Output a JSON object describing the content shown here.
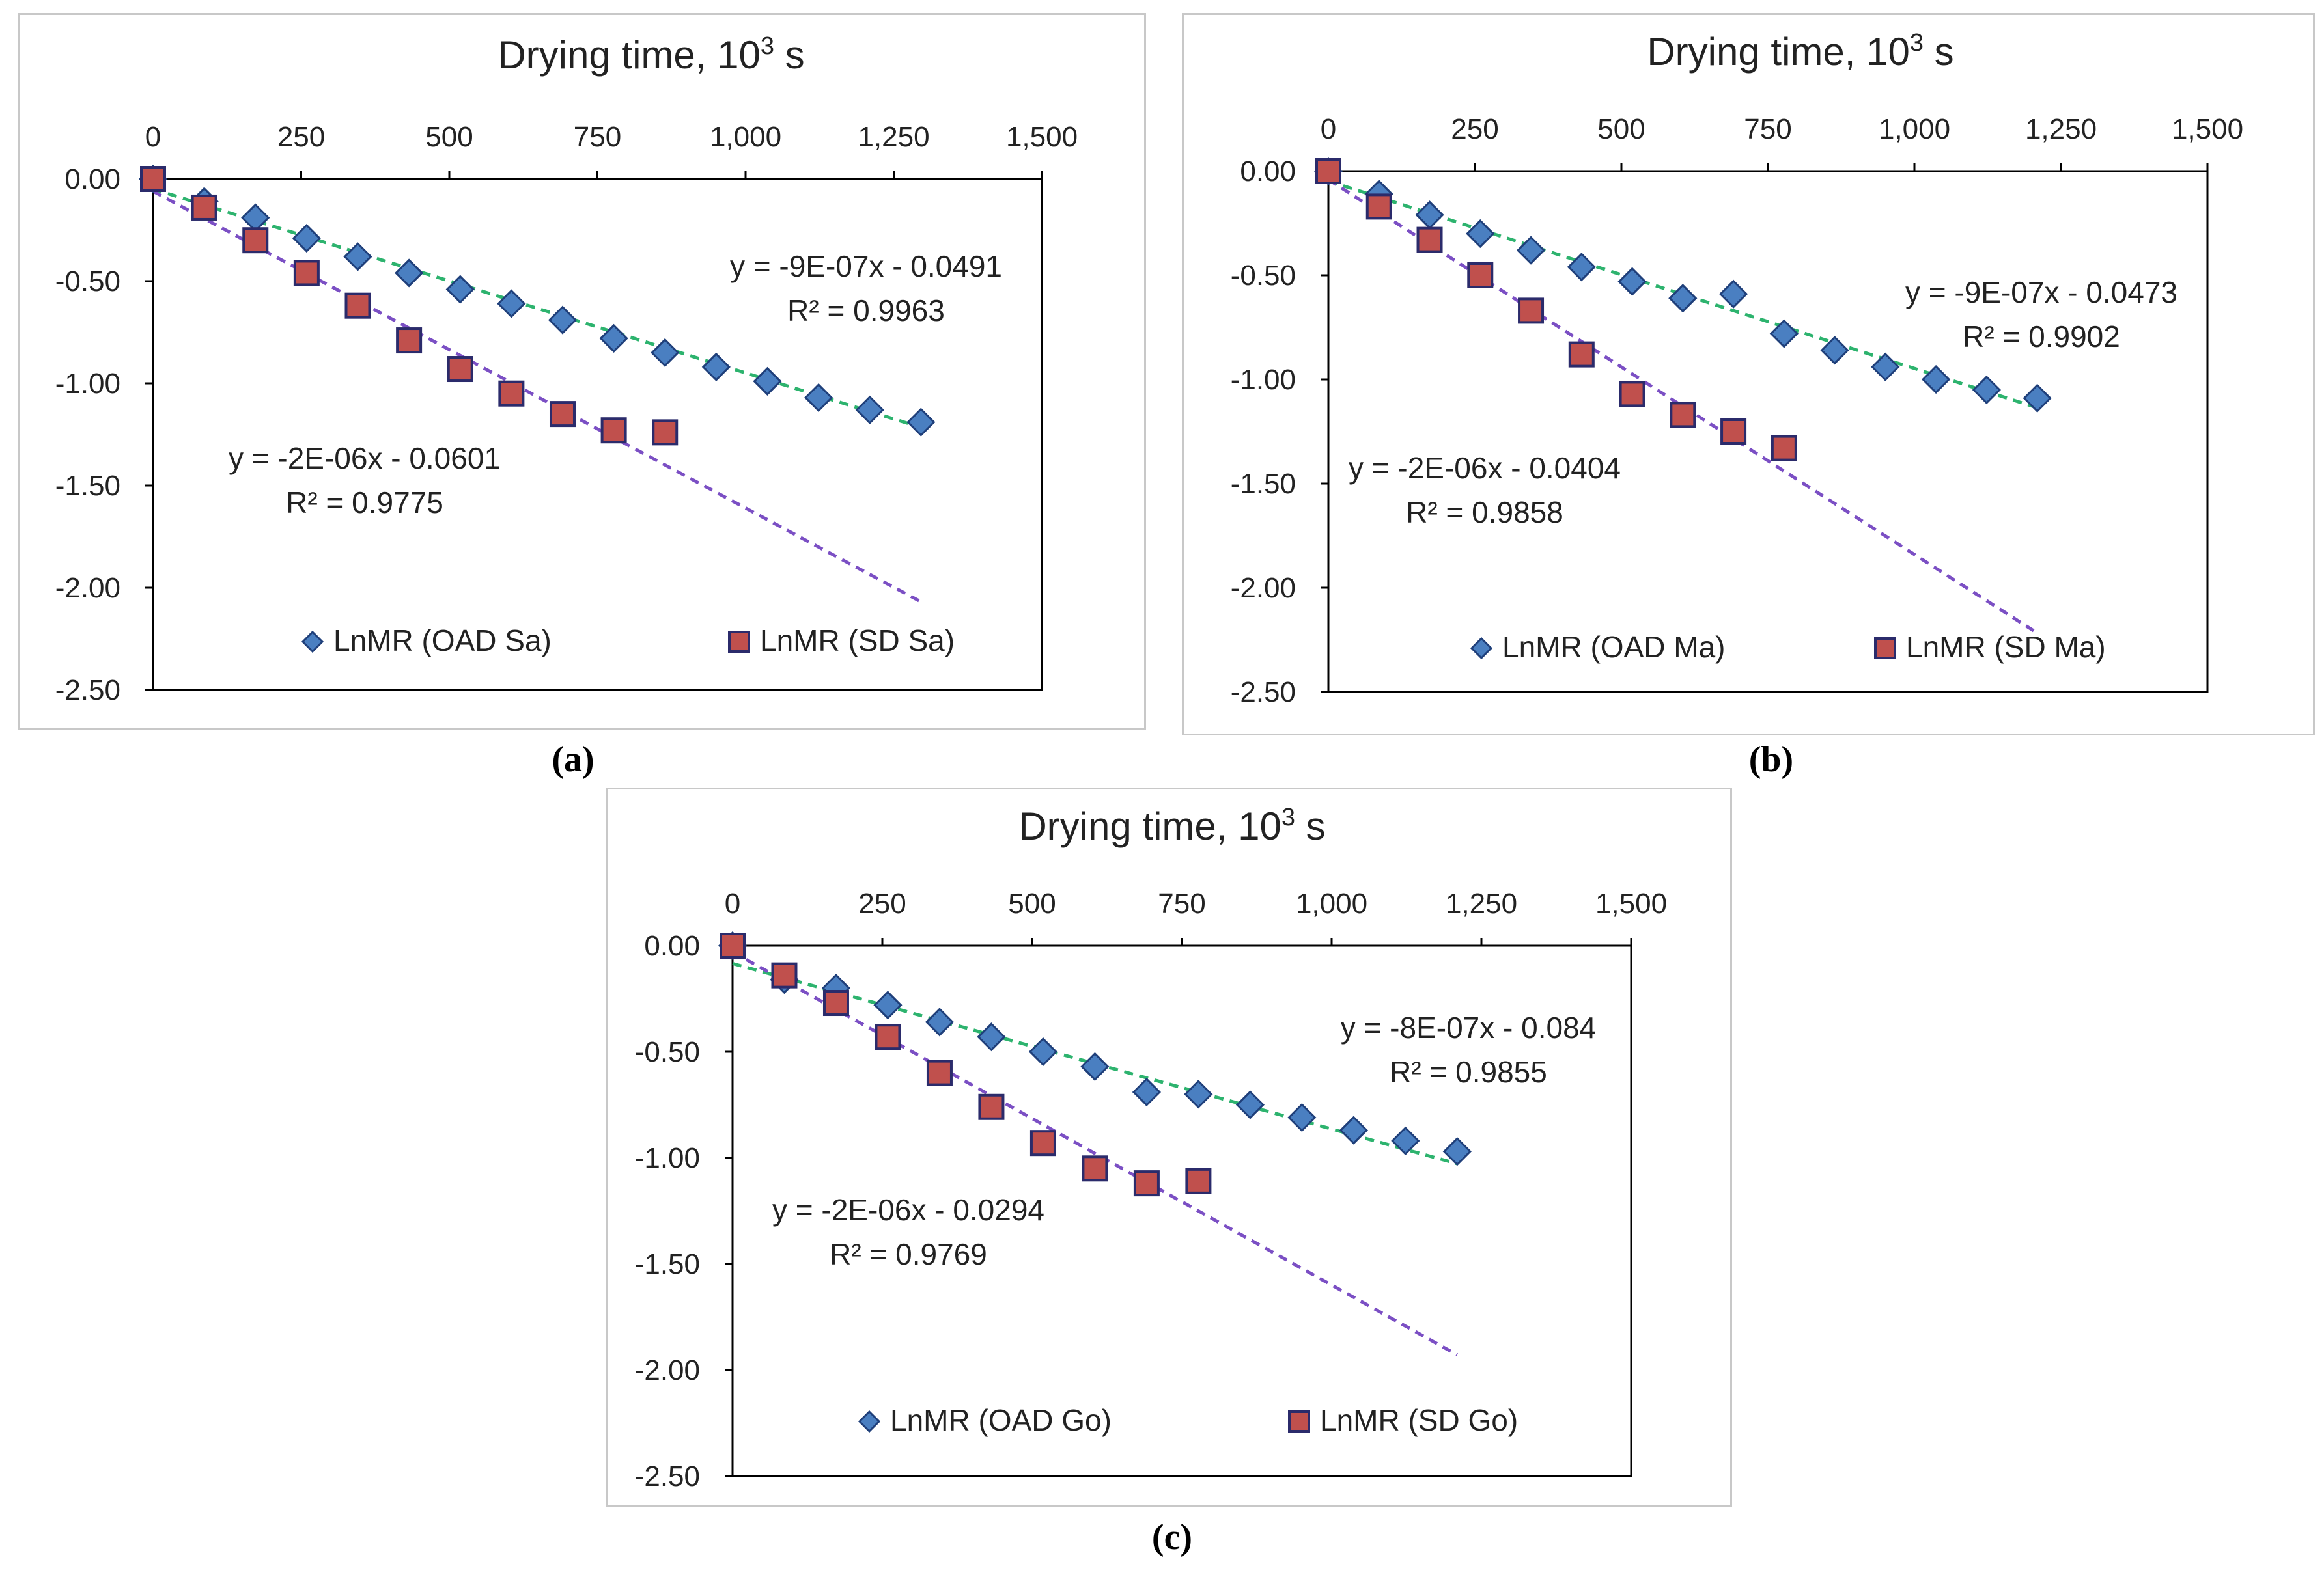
{
  "figure": {
    "captions": [
      "(a)",
      "(b)",
      "(c)"
    ]
  },
  "colors": {
    "diamond_fill": "#4a7fc1",
    "diamond_stroke": "#1f3f7a",
    "square_fill": "#c0504d",
    "square_stroke": "#2b2b6b",
    "trend_green": "#2db36e",
    "trend_purple": "#7b4fc4",
    "axis": "#000000",
    "text": "#222222"
  },
  "chart_data": [
    {
      "type": "scatter",
      "panel": "(a)",
      "title": "Drying time, 10",
      "title_sup": "3",
      "title_unit": " s",
      "x_ticks": [
        "0",
        "250",
        "500",
        "750",
        "1,000",
        "1,250",
        "1,500"
      ],
      "y_ticks": [
        "0.00",
        "-0.50",
        "-1.00",
        "-1.50",
        "-2.00",
        "-2.50"
      ],
      "xlim": [
        0,
        1500
      ],
      "ylim": [
        -2.5,
        0
      ],
      "x_axis_position": "top",
      "series": [
        {
          "name": "LnMR (OAD Sa)",
          "marker": "diamond",
          "x": [
            0,
            86.4,
            172.8,
            259.2,
            345.6,
            432,
            518.4,
            604.8,
            691.2,
            777.6,
            864,
            950.4,
            1036.8,
            1123.2,
            1209.6,
            1296
          ],
          "y": [
            0.0,
            -0.11,
            -0.19,
            -0.29,
            -0.38,
            -0.46,
            -0.54,
            -0.61,
            -0.69,
            -0.78,
            -0.85,
            -0.92,
            -0.99,
            -1.07,
            -1.13,
            -1.19
          ]
        },
        {
          "name": "LnMR (SD Sa)",
          "marker": "square",
          "x": [
            0,
            86.4,
            172.8,
            259.2,
            345.6,
            432,
            518.4,
            604.8,
            691.2,
            777.6,
            864
          ],
          "y": [
            0.0,
            -0.14,
            -0.3,
            -0.46,
            -0.62,
            -0.79,
            -0.93,
            -1.05,
            -1.15,
            -1.23,
            -1.24
          ]
        }
      ],
      "trendlines": [
        {
          "series": "LnMR (OAD Sa)",
          "x_range": [
            0,
            1296
          ],
          "slope_per_1000s": -0.9,
          "intercept": -0.0491,
          "equation": "y = -9E-07x - 0.0491",
          "r2": "R² = 0.9963"
        },
        {
          "series": "LnMR (SD Sa)",
          "x_range": [
            0,
            1296
          ],
          "slope_per_1000s": -1.55,
          "intercept": -0.0601,
          "equation": "y = -2E-06x - 0.0601",
          "r2": "R² = 0.9775"
        }
      ]
    },
    {
      "type": "scatter",
      "panel": "(b)",
      "title": "Drying time, 10",
      "title_sup": "3",
      "title_unit": " s",
      "x_ticks": [
        "0",
        "250",
        "500",
        "750",
        "1,000",
        "1,250",
        "1,500"
      ],
      "y_ticks": [
        "0.00",
        "-0.50",
        "-1.00",
        "-1.50",
        "-2.00",
        "-2.50"
      ],
      "xlim": [
        0,
        1500
      ],
      "ylim": [
        -2.5,
        0
      ],
      "x_axis_position": "top",
      "series": [
        {
          "name": "LnMR (OAD Ma)",
          "marker": "diamond",
          "x": [
            0,
            86.4,
            172.8,
            259.2,
            345.6,
            432,
            518.4,
            604.8,
            691.2,
            777.6,
            864,
            950.4,
            1036.8,
            1123.2,
            1209.6
          ],
          "y": [
            0.0,
            -0.11,
            -0.21,
            -0.3,
            -0.38,
            -0.46,
            -0.53,
            -0.61,
            -0.59,
            -0.78,
            -0.86,
            -0.94,
            -1.0,
            -1.05,
            -1.09
          ]
        },
        {
          "name": "LnMR (SD Ma)",
          "marker": "square",
          "x": [
            0,
            86.4,
            172.8,
            259.2,
            345.6,
            432,
            518.4,
            604.8,
            691.2,
            777.6
          ],
          "y": [
            0.0,
            -0.17,
            -0.33,
            -0.5,
            -0.67,
            -0.88,
            -1.07,
            -1.17,
            -1.25,
            -1.33
          ]
        }
      ],
      "trendlines": [
        {
          "series": "LnMR (OAD Ma)",
          "x_range": [
            0,
            1209.6
          ],
          "slope_per_1000s": -0.9,
          "intercept": -0.0473,
          "equation": "y = -9E-07x - 0.0473",
          "r2": "R² = 0.9902"
        },
        {
          "series": "LnMR (SD Ma)",
          "x_range": [
            0,
            1209.6
          ],
          "slope_per_1000s": -1.8,
          "intercept": -0.0404,
          "equation": "y = -2E-06x - 0.0404",
          "r2": "R² = 0.9858"
        }
      ]
    },
    {
      "type": "scatter",
      "panel": "(c)",
      "title": "Drying time, 10",
      "title_sup": "3",
      "title_unit": " s",
      "x_ticks": [
        "0",
        "250",
        "500",
        "750",
        "1,000",
        "1,250",
        "1,500"
      ],
      "y_ticks": [
        "0.00",
        "-0.50",
        "-1.00",
        "-1.50",
        "-2.00",
        "-2.50"
      ],
      "xlim": [
        0,
        1500
      ],
      "ylim": [
        -2.5,
        0
      ],
      "x_axis_position": "top",
      "series": [
        {
          "name": "LnMR (OAD Go)",
          "marker": "diamond",
          "x": [
            0,
            86.4,
            172.8,
            259.2,
            345.6,
            432,
            518.4,
            604.8,
            691.2,
            777.6,
            864,
            950.4,
            1036.8,
            1123.2,
            1209.6
          ],
          "y": [
            0.0,
            -0.16,
            -0.2,
            -0.28,
            -0.36,
            -0.43,
            -0.5,
            -0.57,
            -0.69,
            -0.7,
            -0.75,
            -0.81,
            -0.87,
            -0.92,
            -0.97
          ]
        },
        {
          "name": "LnMR (SD Go)",
          "marker": "square",
          "x": [
            0,
            86.4,
            172.8,
            259.2,
            345.6,
            432,
            518.4,
            604.8,
            691.2,
            777.6
          ],
          "y": [
            0.0,
            -0.14,
            -0.27,
            -0.43,
            -0.6,
            -0.76,
            -0.93,
            -1.05,
            -1.12,
            -1.11
          ]
        }
      ],
      "trendlines": [
        {
          "series": "LnMR (OAD Go)",
          "x_range": [
            0,
            1209.6
          ],
          "slope_per_1000s": -0.78,
          "intercept": -0.084,
          "equation": "y = -8E-07x - 0.084",
          "r2": "R² = 0.9855"
        },
        {
          "series": "LnMR (SD Go)",
          "x_range": [
            0,
            1209.6
          ],
          "slope_per_1000s": -1.57,
          "intercept": -0.0294,
          "equation": "y = -2E-06x - 0.0294",
          "r2": "R² = 0.9769"
        }
      ]
    }
  ]
}
